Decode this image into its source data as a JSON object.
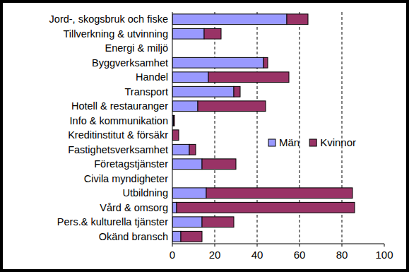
{
  "chart_data": {
    "type": "bar",
    "orientation": "horizontal",
    "stacked": true,
    "categories": [
      "Jord-, skogsbruk och fiske",
      "Tillverkning & utvinning",
      "Energi & miljö",
      "Byggverksamhet",
      "Handel",
      "Transport",
      "Hotell & restauranger",
      "Info & kommunikation",
      "Kreditinstitut & försäkr",
      "Fastighetsverksamhet",
      "Företagstjänster",
      "Civila myndigheter",
      "Utbildning",
      "Vård & omsorg",
      "Pers.& kulturella tjänster",
      "Okänd bransch"
    ],
    "series": [
      {
        "name": "Män",
        "color": "#9999ff",
        "values": [
          54,
          15,
          0,
          43,
          17,
          29,
          12,
          0.5,
          0,
          8,
          14,
          0,
          16,
          2,
          14,
          4
        ]
      },
      {
        "name": "Kvinnor",
        "color": "#993366",
        "values": [
          10,
          8,
          0,
          2,
          38,
          3,
          32,
          0.5,
          3,
          3,
          16,
          0,
          69,
          84,
          15,
          10
        ]
      }
    ],
    "xlim": [
      0,
      100
    ],
    "xticks": [
      0,
      20,
      40,
      60,
      80,
      100
    ],
    "grid": true,
    "legend": "right"
  }
}
